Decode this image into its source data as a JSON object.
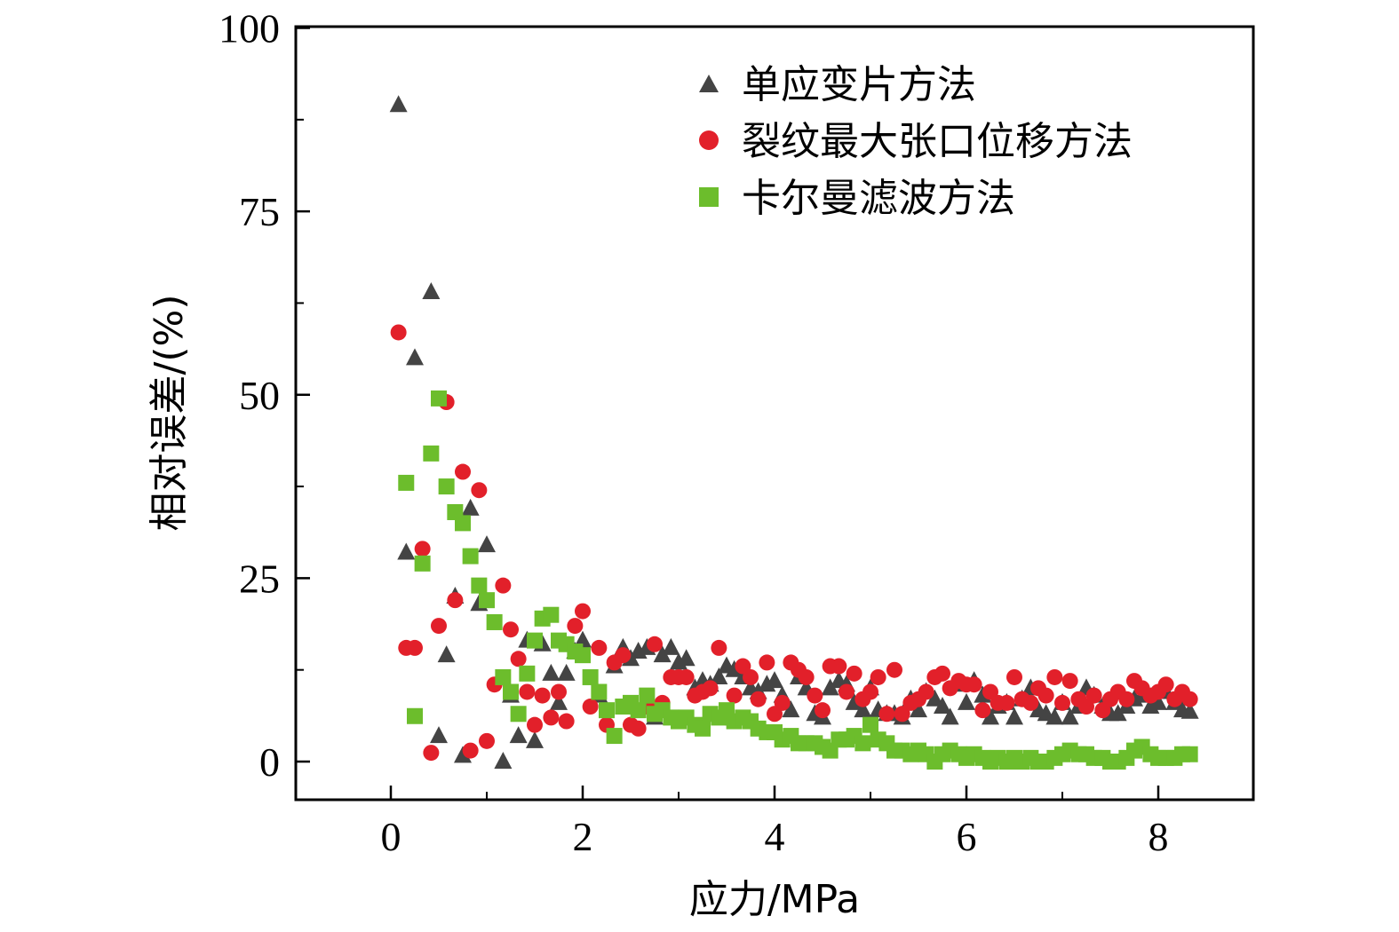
{
  "chart_data": {
    "type": "scatter",
    "xlabel": "应力/MPa",
    "ylabel": "相对误差/(%)",
    "xlim": [
      -1,
      9
    ],
    "ylim": [
      -5,
      100
    ],
    "xticks": [
      0,
      2,
      4,
      6,
      8
    ],
    "yticks": [
      0,
      25,
      50,
      75,
      100
    ],
    "x_minor_ticks": [
      -1,
      1,
      3,
      5,
      7,
      9
    ],
    "y_minor_ticks": [
      12.5,
      37.5,
      62.5,
      87.5
    ],
    "grid": false,
    "legend_position": "top-right",
    "series": [
      {
        "name": "单应变片方法",
        "marker": "triangle",
        "color": "#444444",
        "points": [
          [
            0.08,
            89.5
          ],
          [
            0.16,
            28.5
          ],
          [
            0.25,
            55.0
          ],
          [
            0.42,
            64.0
          ],
          [
            0.5,
            3.5
          ],
          [
            0.58,
            14.5
          ],
          [
            0.67,
            22.5
          ],
          [
            0.75,
            0.8
          ],
          [
            0.83,
            34.5
          ],
          [
            0.92,
            21.5
          ],
          [
            1.0,
            29.5
          ],
          [
            1.17,
            0.0
          ],
          [
            1.25,
            9.0
          ],
          [
            1.33,
            3.5
          ],
          [
            1.42,
            16.5
          ],
          [
            1.5,
            2.8
          ],
          [
            1.58,
            16.0
          ],
          [
            1.67,
            12.0
          ],
          [
            1.75,
            8.0
          ],
          [
            1.83,
            12.0
          ],
          [
            1.92,
            15.0
          ],
          [
            2.0,
            16.5
          ],
          [
            2.17,
            9.0
          ],
          [
            2.33,
            13.0
          ],
          [
            2.42,
            15.5
          ],
          [
            2.5,
            14.0
          ],
          [
            2.58,
            15.0
          ],
          [
            2.67,
            15.5
          ],
          [
            2.75,
            6.0
          ],
          [
            2.83,
            14.5
          ],
          [
            2.92,
            15.5
          ],
          [
            3.0,
            13.5
          ],
          [
            3.08,
            14.0
          ],
          [
            3.17,
            10.0
          ],
          [
            3.25,
            11.0
          ],
          [
            3.33,
            10.5
          ],
          [
            3.42,
            11.5
          ],
          [
            3.5,
            13.0
          ],
          [
            3.58,
            12.5
          ],
          [
            3.67,
            11.5
          ],
          [
            3.75,
            10.0
          ],
          [
            3.83,
            9.5
          ],
          [
            3.92,
            10.5
          ],
          [
            4.0,
            11.0
          ],
          [
            4.08,
            9.0
          ],
          [
            4.17,
            7.0
          ],
          [
            4.25,
            11.5
          ],
          [
            4.33,
            10.0
          ],
          [
            4.42,
            6.5
          ],
          [
            4.5,
            6.0
          ],
          [
            4.58,
            10.0
          ],
          [
            4.67,
            11.0
          ],
          [
            4.75,
            10.5
          ],
          [
            4.83,
            8.0
          ],
          [
            4.92,
            7.0
          ],
          [
            5.0,
            10.0
          ],
          [
            5.08,
            7.0
          ],
          [
            5.17,
            6.5
          ],
          [
            5.25,
            6.5
          ],
          [
            5.33,
            6.0
          ],
          [
            5.42,
            8.5
          ],
          [
            5.5,
            7.0
          ],
          [
            5.58,
            9.5
          ],
          [
            5.67,
            8.5
          ],
          [
            5.75,
            7.5
          ],
          [
            5.83,
            6.0
          ],
          [
            5.92,
            10.5
          ],
          [
            6.0,
            8.0
          ],
          [
            6.08,
            11.0
          ],
          [
            6.17,
            9.0
          ],
          [
            6.25,
            6.0
          ],
          [
            6.33,
            7.5
          ],
          [
            6.42,
            8.0
          ],
          [
            6.5,
            6.0
          ],
          [
            6.58,
            8.5
          ],
          [
            6.67,
            10.0
          ],
          [
            6.75,
            7.0
          ],
          [
            6.83,
            6.5
          ],
          [
            6.92,
            6.0
          ],
          [
            7.0,
            8.0
          ],
          [
            7.08,
            6.0
          ],
          [
            7.17,
            7.5
          ],
          [
            7.25,
            10.0
          ],
          [
            7.33,
            9.0
          ],
          [
            7.42,
            7.5
          ],
          [
            7.5,
            6.5
          ],
          [
            7.58,
            6.5
          ],
          [
            7.67,
            7.5
          ],
          [
            7.75,
            8.5
          ],
          [
            7.83,
            9.0
          ],
          [
            7.92,
            7.5
          ],
          [
            8.0,
            8.0
          ],
          [
            8.08,
            9.5
          ],
          [
            8.17,
            8.0
          ],
          [
            8.25,
            7.0
          ],
          [
            8.33,
            6.8
          ]
        ]
      },
      {
        "name": "裂纹最大张口位移方法",
        "marker": "circle",
        "color": "#e2202a",
        "points": [
          [
            0.08,
            58.5
          ],
          [
            0.16,
            15.5
          ],
          [
            0.25,
            15.5
          ],
          [
            0.33,
            29.0
          ],
          [
            0.42,
            1.2
          ],
          [
            0.5,
            18.5
          ],
          [
            0.58,
            49.0
          ],
          [
            0.67,
            22.0
          ],
          [
            0.75,
            39.5
          ],
          [
            0.83,
            1.5
          ],
          [
            0.92,
            37.0
          ],
          [
            1.0,
            2.8
          ],
          [
            1.08,
            10.5
          ],
          [
            1.17,
            24.0
          ],
          [
            1.25,
            18.0
          ],
          [
            1.33,
            14.0
          ],
          [
            1.42,
            9.5
          ],
          [
            1.5,
            5.0
          ],
          [
            1.58,
            9.0
          ],
          [
            1.67,
            6.0
          ],
          [
            1.75,
            9.5
          ],
          [
            1.83,
            5.5
          ],
          [
            1.92,
            18.5
          ],
          [
            2.0,
            20.5
          ],
          [
            2.08,
            7.5
          ],
          [
            2.17,
            15.5
          ],
          [
            2.25,
            5.0
          ],
          [
            2.33,
            13.5
          ],
          [
            2.42,
            14.5
          ],
          [
            2.5,
            5.0
          ],
          [
            2.58,
            4.5
          ],
          [
            2.67,
            7.5
          ],
          [
            2.75,
            16.0
          ],
          [
            2.83,
            8.0
          ],
          [
            2.92,
            11.5
          ],
          [
            3.0,
            11.5
          ],
          [
            3.08,
            11.5
          ],
          [
            3.17,
            9.0
          ],
          [
            3.25,
            9.5
          ],
          [
            3.33,
            10.0
          ],
          [
            3.42,
            15.5
          ],
          [
            3.5,
            6.0
          ],
          [
            3.58,
            9.0
          ],
          [
            3.67,
            13.0
          ],
          [
            3.75,
            11.5
          ],
          [
            3.83,
            8.5
          ],
          [
            3.92,
            13.5
          ],
          [
            4.0,
            6.5
          ],
          [
            4.08,
            8.0
          ],
          [
            4.17,
            13.5
          ],
          [
            4.25,
            12.5
          ],
          [
            4.33,
            11.5
          ],
          [
            4.42,
            9.0
          ],
          [
            4.5,
            7.0
          ],
          [
            4.58,
            13.0
          ],
          [
            4.67,
            13.0
          ],
          [
            4.75,
            9.5
          ],
          [
            4.83,
            12.0
          ],
          [
            4.92,
            8.5
          ],
          [
            5.0,
            9.5
          ],
          [
            5.08,
            11.5
          ],
          [
            5.17,
            6.5
          ],
          [
            5.25,
            12.5
          ],
          [
            5.33,
            6.5
          ],
          [
            5.42,
            8.0
          ],
          [
            5.5,
            8.5
          ],
          [
            5.58,
            9.5
          ],
          [
            5.67,
            11.5
          ],
          [
            5.75,
            12.0
          ],
          [
            5.83,
            10.0
          ],
          [
            5.92,
            11.0
          ],
          [
            6.0,
            10.5
          ],
          [
            6.08,
            10.5
          ],
          [
            6.17,
            7.0
          ],
          [
            6.25,
            9.5
          ],
          [
            6.33,
            8.0
          ],
          [
            6.42,
            8.0
          ],
          [
            6.5,
            11.5
          ],
          [
            6.58,
            8.5
          ],
          [
            6.67,
            8.0
          ],
          [
            6.75,
            10.0
          ],
          [
            6.83,
            9.0
          ],
          [
            6.92,
            11.5
          ],
          [
            7.0,
            8.0
          ],
          [
            7.08,
            11.0
          ],
          [
            7.17,
            8.5
          ],
          [
            7.25,
            7.5
          ],
          [
            7.33,
            9.0
          ],
          [
            7.42,
            7.0
          ],
          [
            7.5,
            8.5
          ],
          [
            7.58,
            9.5
          ],
          [
            7.67,
            8.5
          ],
          [
            7.75,
            11.0
          ],
          [
            7.83,
            10.0
          ],
          [
            7.92,
            9.0
          ],
          [
            8.0,
            9.5
          ],
          [
            8.08,
            10.5
          ],
          [
            8.17,
            8.5
          ],
          [
            8.25,
            9.5
          ],
          [
            8.33,
            8.5
          ]
        ]
      },
      {
        "name": "卡尔曼滤波方法",
        "marker": "square",
        "color": "#6cbd2c",
        "points": [
          [
            0.16,
            38.0
          ],
          [
            0.25,
            6.2
          ],
          [
            0.33,
            27.0
          ],
          [
            0.42,
            42.0
          ],
          [
            0.5,
            49.5
          ],
          [
            0.58,
            37.5
          ],
          [
            0.67,
            34.0
          ],
          [
            0.75,
            32.5
          ],
          [
            0.83,
            28.0
          ],
          [
            0.92,
            24.0
          ],
          [
            1.0,
            22.0
          ],
          [
            1.08,
            19.0
          ],
          [
            1.17,
            11.5
          ],
          [
            1.25,
            9.5
          ],
          [
            1.33,
            6.5
          ],
          [
            1.42,
            12.0
          ],
          [
            1.5,
            16.5
          ],
          [
            1.58,
            19.5
          ],
          [
            1.67,
            20.0
          ],
          [
            1.75,
            16.5
          ],
          [
            1.83,
            16.0
          ],
          [
            1.92,
            15.0
          ],
          [
            2.0,
            14.5
          ],
          [
            2.08,
            11.5
          ],
          [
            2.17,
            9.5
          ],
          [
            2.25,
            7.0
          ],
          [
            2.33,
            3.5
          ],
          [
            2.42,
            7.5
          ],
          [
            2.5,
            8.0
          ],
          [
            2.58,
            7.0
          ],
          [
            2.67,
            9.0
          ],
          [
            2.75,
            6.5
          ],
          [
            2.83,
            7.0
          ],
          [
            2.92,
            6.0
          ],
          [
            3.0,
            5.5
          ],
          [
            3.08,
            6.0
          ],
          [
            3.17,
            5.0
          ],
          [
            3.25,
            4.5
          ],
          [
            3.33,
            6.5
          ],
          [
            3.42,
            6.0
          ],
          [
            3.5,
            7.0
          ],
          [
            3.58,
            5.5
          ],
          [
            3.67,
            6.0
          ],
          [
            3.75,
            5.5
          ],
          [
            3.83,
            4.5
          ],
          [
            3.92,
            4.0
          ],
          [
            4.0,
            4.0
          ],
          [
            4.08,
            3.0
          ],
          [
            4.17,
            3.5
          ],
          [
            4.25,
            2.5
          ],
          [
            4.33,
            2.5
          ],
          [
            4.42,
            2.5
          ],
          [
            4.5,
            2.0
          ],
          [
            4.58,
            1.5
          ],
          [
            4.67,
            3.0
          ],
          [
            4.75,
            3.0
          ],
          [
            4.83,
            3.5
          ],
          [
            4.92,
            2.5
          ],
          [
            5.0,
            5.0
          ],
          [
            5.08,
            3.0
          ],
          [
            5.17,
            2.5
          ],
          [
            5.25,
            1.5
          ],
          [
            5.33,
            1.5
          ],
          [
            5.42,
            1.0
          ],
          [
            5.5,
            1.5
          ],
          [
            5.58,
            1.0
          ],
          [
            5.67,
            0.0
          ],
          [
            5.75,
            1.0
          ],
          [
            5.83,
            1.5
          ],
          [
            5.92,
            1.0
          ],
          [
            6.0,
            0.5
          ],
          [
            6.08,
            1.0
          ],
          [
            6.17,
            0.5
          ],
          [
            6.25,
            0.0
          ],
          [
            6.33,
            0.5
          ],
          [
            6.42,
            0.0
          ],
          [
            6.5,
            0.5
          ],
          [
            6.58,
            0.0
          ],
          [
            6.67,
            0.5
          ],
          [
            6.75,
            0.0
          ],
          [
            6.83,
            0.0
          ],
          [
            6.92,
            0.5
          ],
          [
            7.0,
            1.0
          ],
          [
            7.08,
            1.5
          ],
          [
            7.17,
            1.0
          ],
          [
            7.25,
            1.0
          ],
          [
            7.33,
            0.5
          ],
          [
            7.42,
            0.5
          ],
          [
            7.5,
            0.0
          ],
          [
            7.58,
            0.0
          ],
          [
            7.67,
            0.5
          ],
          [
            7.75,
            1.5
          ],
          [
            7.83,
            2.0
          ],
          [
            7.92,
            1.0
          ],
          [
            8.0,
            0.5
          ],
          [
            8.08,
            0.5
          ],
          [
            8.17,
            0.5
          ],
          [
            8.25,
            1.0
          ],
          [
            8.33,
            1.0
          ]
        ]
      }
    ]
  }
}
